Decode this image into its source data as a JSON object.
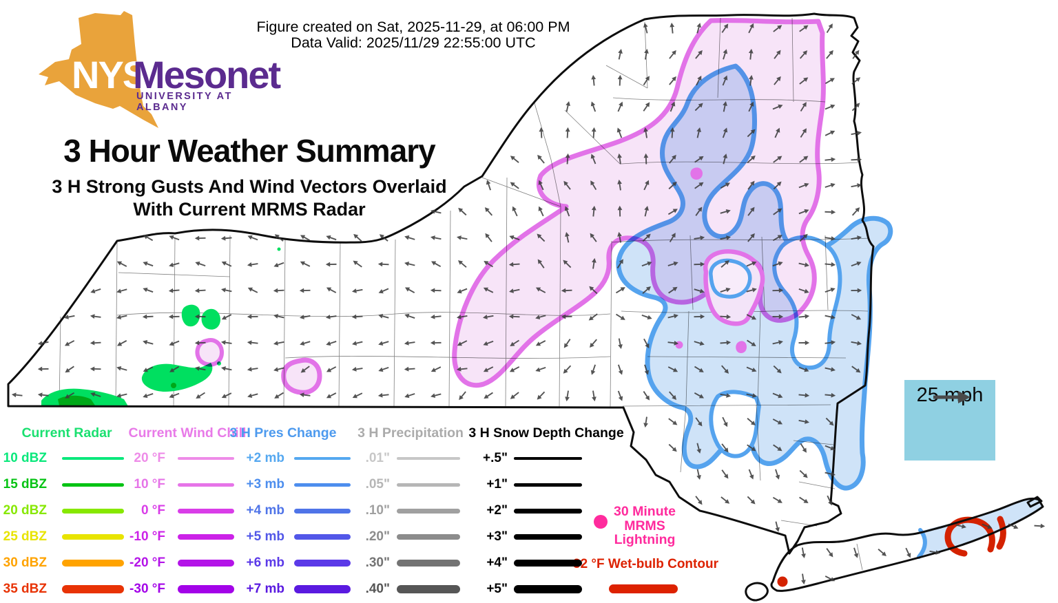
{
  "header": {
    "caption_line1": "Figure created on Sat, 2025-11-29, at 06:00 PM",
    "caption_line2": "Data Valid: 2025/11/29 22:55:00 UTC",
    "title": "3 Hour Weather Summary",
    "subtitle_line1": "3 H Strong Gusts And Wind Vectors Overlaid",
    "subtitle_line2": "With Current MRMS Radar"
  },
  "logo": {
    "acronym": "NYS",
    "name": "Mesonet",
    "tagline": "UNIVERSITY AT ALBANY",
    "state_color": "#e9a33b",
    "text_color": "#5b2b8f"
  },
  "wind_reference": {
    "label": "25 mph"
  },
  "legend": {
    "columns": [
      {
        "id": "radar",
        "header": "Current Radar",
        "header_color": "#1ae070",
        "items": [
          {
            "label": "10 dBZ",
            "color": "#0ae87c",
            "thickness": 4
          },
          {
            "label": "15 dBZ",
            "color": "#06c314",
            "thickness": 5
          },
          {
            "label": "20 dBZ",
            "color": "#87e801",
            "thickness": 7
          },
          {
            "label": "25 dBZ",
            "color": "#e8e400",
            "thickness": 8
          },
          {
            "label": "30 dBZ",
            "color": "#ffa300",
            "thickness": 10
          },
          {
            "label": "35 dBZ",
            "color": "#e83305",
            "thickness": 12
          }
        ]
      },
      {
        "id": "windchill",
        "header": "Current Wind Chill",
        "header_color": "#e87ae8",
        "items": [
          {
            "label": "20 °F",
            "color": "#ee8ce8",
            "thickness": 4
          },
          {
            "label": "10 °F",
            "color": "#e674e8",
            "thickness": 5
          },
          {
            "label": "0 °F",
            "color": "#d93de8",
            "thickness": 7
          },
          {
            "label": "-10 °F",
            "color": "#cc22e8",
            "thickness": 8
          },
          {
            "label": "-20 °F",
            "color": "#b414e8",
            "thickness": 10
          },
          {
            "label": "-30 °F",
            "color": "#a303e8",
            "thickness": 12
          }
        ]
      },
      {
        "id": "pres",
        "header": "3 H Pres Change",
        "header_color": "#4d9aee",
        "items": [
          {
            "label": "+2 mb",
            "color": "#55a8f0",
            "thickness": 4
          },
          {
            "label": "+3 mb",
            "color": "#4d8eee",
            "thickness": 5
          },
          {
            "label": "+4 mb",
            "color": "#4f74e8",
            "thickness": 7
          },
          {
            "label": "+5 mb",
            "color": "#5257e8",
            "thickness": 8
          },
          {
            "label": "+6 mb",
            "color": "#5b3ae8",
            "thickness": 10
          },
          {
            "label": "+7 mb",
            "color": "#5a1ae0",
            "thickness": 12
          }
        ]
      },
      {
        "id": "precip",
        "header": "3 H Precipitation",
        "header_color": "#ababab",
        "items": [
          {
            "label": ".01\"",
            "color": "#c7c7c7",
            "thickness": 4
          },
          {
            "label": ".05\"",
            "color": "#b6b6b6",
            "thickness": 5
          },
          {
            "label": ".10\"",
            "color": "#a0a0a0",
            "thickness": 7
          },
          {
            "label": ".20\"",
            "color": "#8c8c8c",
            "thickness": 8
          },
          {
            "label": ".30\"",
            "color": "#737373",
            "thickness": 10
          },
          {
            "label": ".40\"",
            "color": "#565656",
            "thickness": 12
          }
        ]
      },
      {
        "id": "snow",
        "header": "3 H Snow Depth Change",
        "header_color": "#000000",
        "items": [
          {
            "label": "+.5\"",
            "color": "#000000",
            "thickness": 4
          },
          {
            "label": "+1\"",
            "color": "#000000",
            "thickness": 5
          },
          {
            "label": "+2\"",
            "color": "#000000",
            "thickness": 7
          },
          {
            "label": "+3\"",
            "color": "#000000",
            "thickness": 8
          },
          {
            "label": "+4\"",
            "color": "#000000",
            "thickness": 10
          },
          {
            "label": "+5\"",
            "color": "#000000",
            "thickness": 12
          }
        ]
      }
    ],
    "lightning": {
      "lines": [
        "30 Minute",
        "MRMS",
        "Lightning"
      ],
      "color": "#ff2b9d"
    },
    "wetbulb": {
      "label": "32 °F Wet-bulb Contour",
      "color": "#dd2200"
    }
  },
  "map": {
    "wind_color": "#3c3c3c",
    "colors": {
      "wind_chill_contour": "#e273e8",
      "wind_chill_fill": "#f7e4f8",
      "pressure_contour": "#55a3ee",
      "pressure_fill": "#cfe3f8",
      "radar_low": "#00df60",
      "radar_mid": "#00a818",
      "wetbulb": "#d42200",
      "marker_dot": "#d42200"
    }
  }
}
